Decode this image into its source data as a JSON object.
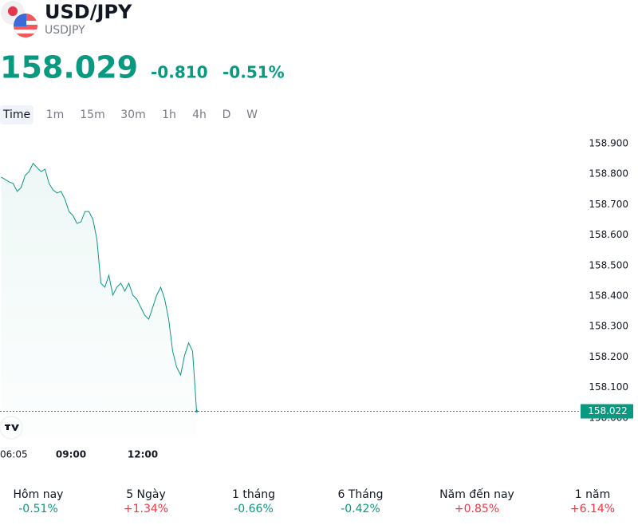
{
  "header": {
    "title": "USD/JPY",
    "symbol": "USDJPY",
    "price": "158.029",
    "change": "-0.810",
    "change_percent": "-0.51%"
  },
  "tabs": [
    "Time",
    "1m",
    "15m",
    "30m",
    "1h",
    "4h",
    "D",
    "W"
  ],
  "chart_data": {
    "type": "line",
    "color": "#089981",
    "x": [
      "06:05",
      "06:15",
      "06:25",
      "06:35",
      "06:45",
      "06:55",
      "07:05",
      "07:15",
      "07:25",
      "07:35",
      "07:45",
      "07:55",
      "08:05",
      "08:15",
      "08:25",
      "08:35",
      "08:45",
      "08:55",
      "09:05",
      "09:15",
      "09:25",
      "09:35",
      "09:45",
      "09:55",
      "10:05",
      "10:15",
      "10:25",
      "10:35",
      "10:45",
      "10:55",
      "11:05",
      "11:15",
      "11:25",
      "11:35",
      "11:45",
      "11:55",
      "12:05",
      "12:15",
      "12:25",
      "12:35",
      "12:45",
      "12:55",
      "13:05",
      "13:15",
      "13:25",
      "13:35",
      "13:45",
      "13:55",
      "14:05",
      "14:15"
    ],
    "values": [
      158.79,
      158.782,
      158.774,
      158.769,
      158.743,
      158.756,
      158.795,
      158.808,
      158.835,
      158.821,
      158.808,
      158.816,
      158.769,
      158.748,
      158.738,
      158.743,
      158.717,
      158.677,
      158.664,
      158.638,
      158.643,
      158.677,
      158.677,
      158.651,
      158.586,
      158.442,
      158.429,
      158.468,
      158.403,
      158.429,
      158.442,
      158.416,
      158.442,
      158.403,
      158.39,
      158.363,
      158.337,
      158.324,
      158.363,
      158.403,
      158.429,
      158.39,
      158.324,
      158.219,
      158.167,
      158.141,
      158.206,
      158.246,
      158.219,
      158.022
    ],
    "xticks": [
      "06:05",
      "09:00",
      "12:00"
    ],
    "ylim": [
      157.937,
      158.952
    ],
    "yticks": [
      {
        "value": 158.0,
        "label": "158.000"
      },
      {
        "value": 158.1,
        "label": "158.100"
      },
      {
        "value": 158.2,
        "label": "158.200"
      },
      {
        "value": 158.3,
        "label": "158.300"
      },
      {
        "value": 158.4,
        "label": "158.400"
      },
      {
        "value": 158.5,
        "label": "158.500"
      },
      {
        "value": 158.6,
        "label": "158.600"
      },
      {
        "value": 158.7,
        "label": "158.700"
      },
      {
        "value": 158.8,
        "label": "158.800"
      },
      {
        "value": 158.9,
        "label": "158.900"
      }
    ],
    "last_price": 158.022
  },
  "performance": [
    {
      "label": "Hôm nay",
      "value": "-0.51%",
      "color": "#089981"
    },
    {
      "label": "5 Ngày",
      "value": "+1.34%",
      "color": "#f23645"
    },
    {
      "label": "1 tháng",
      "value": "-0.66%",
      "color": "#089981"
    },
    {
      "label": "6 Tháng",
      "value": "-0.42%",
      "color": "#089981"
    },
    {
      "label": "Năm đến nay",
      "value": "+0.85%",
      "color": "#f23645"
    },
    {
      "label": "1 năm",
      "value": "+6.14%",
      "color": "#f23645"
    }
  ]
}
